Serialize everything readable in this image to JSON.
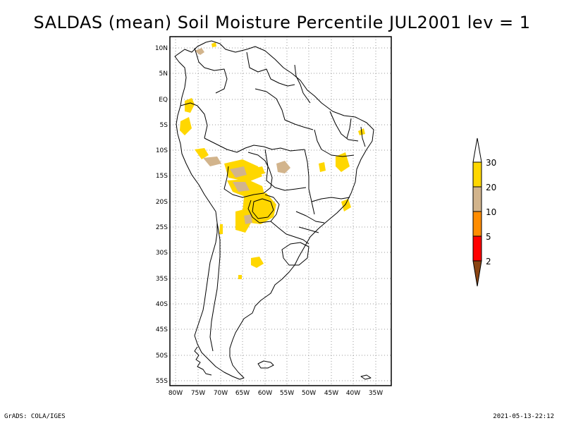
{
  "title": "SALDAS (mean) Soil Moisture Percentile JUL2001 lev = 1",
  "footer": {
    "left": "GrADS: COLA/IGES",
    "right": "2021-05-13-22:12"
  },
  "map": {
    "region": "South America",
    "lat_labels": [
      "10N",
      "5N",
      "EQ",
      "5S",
      "10S",
      "15S",
      "20S",
      "25S",
      "30S",
      "35S",
      "40S",
      "45S",
      "50S",
      "55S"
    ],
    "lon_labels": [
      "80W",
      "75W",
      "70W",
      "65W",
      "60W",
      "55W",
      "50W",
      "45W",
      "40W",
      "35W"
    ],
    "gridlines": "dotted"
  },
  "legend": {
    "levels": [
      "2",
      "5",
      "10",
      "20",
      "30"
    ],
    "colors": {
      "below_2": "#8b4513",
      "2_5": "#ff0000",
      "5_10": "#ff8c00",
      "10_20": "#d2b48c",
      "20_30": "#ffd700",
      "above_30": "#ffffff"
    }
  }
}
